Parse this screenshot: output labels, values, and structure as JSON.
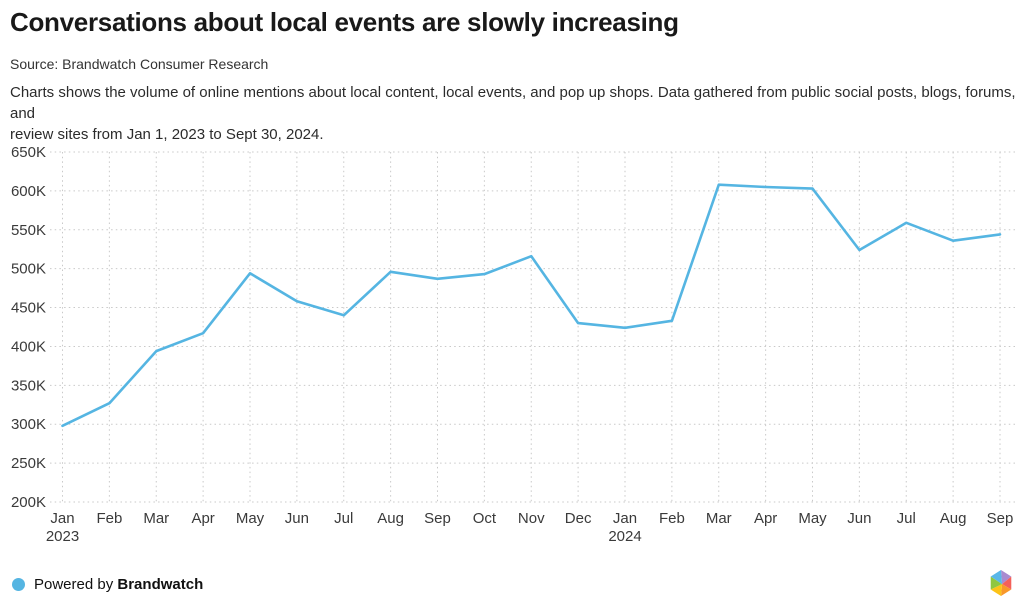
{
  "header": {
    "title": "Conversations about local events are slowly increasing",
    "source": "Source: Brandwatch Consumer Research",
    "description_line1": "Charts shows the volume of online mentions about local content, local events, and pop up shops. Data gathered from public social posts, blogs, forums, and",
    "description_line2": "review sites from Jan 1, 2023 to Sept 30, 2024."
  },
  "chart_data": {
    "type": "line",
    "title": "Conversations about local events are slowly increasing",
    "x_labels": [
      {
        "m": "Jan",
        "y": "2023"
      },
      {
        "m": "Feb"
      },
      {
        "m": "Mar"
      },
      {
        "m": "Apr"
      },
      {
        "m": "May"
      },
      {
        "m": "Jun"
      },
      {
        "m": "Jul"
      },
      {
        "m": "Aug"
      },
      {
        "m": "Sep"
      },
      {
        "m": "Oct"
      },
      {
        "m": "Nov"
      },
      {
        "m": "Dec"
      },
      {
        "m": "Jan",
        "y": "2024"
      },
      {
        "m": "Feb"
      },
      {
        "m": "Mar"
      },
      {
        "m": "Apr"
      },
      {
        "m": "May"
      },
      {
        "m": "Jun"
      },
      {
        "m": "Jul"
      },
      {
        "m": "Aug"
      },
      {
        "m": "Sep"
      }
    ],
    "series": [
      {
        "name": "Volume of online mentions",
        "color": "#55b5e2",
        "values_thousands": [
          298,
          327,
          394,
          417,
          494,
          458,
          440,
          496,
          487,
          493,
          516,
          430,
          424,
          433,
          608,
          605,
          603,
          524,
          559,
          536,
          544
        ]
      }
    ],
    "y_axis": {
      "min_thousands": 200,
      "max_thousands": 650,
      "step_thousands": 50,
      "ticks": [
        "200K",
        "250K",
        "300K",
        "350K",
        "400K",
        "450K",
        "500K",
        "550K",
        "600K",
        "650K"
      ]
    },
    "grid": "dotted",
    "legend_position": "none"
  },
  "footer": {
    "powered_by": "Powered by",
    "brand": "Brandwatch",
    "legend_dot_color": "#55b5e2",
    "logo_name": "brandwatch-hexagon-logo",
    "logo_colors": {
      "blue": "#59b7e8",
      "purple": "#a98bd0",
      "coral": "#f4605a",
      "orange": "#f8982b",
      "yellow": "#fcc318",
      "green": "#8fc740"
    }
  }
}
